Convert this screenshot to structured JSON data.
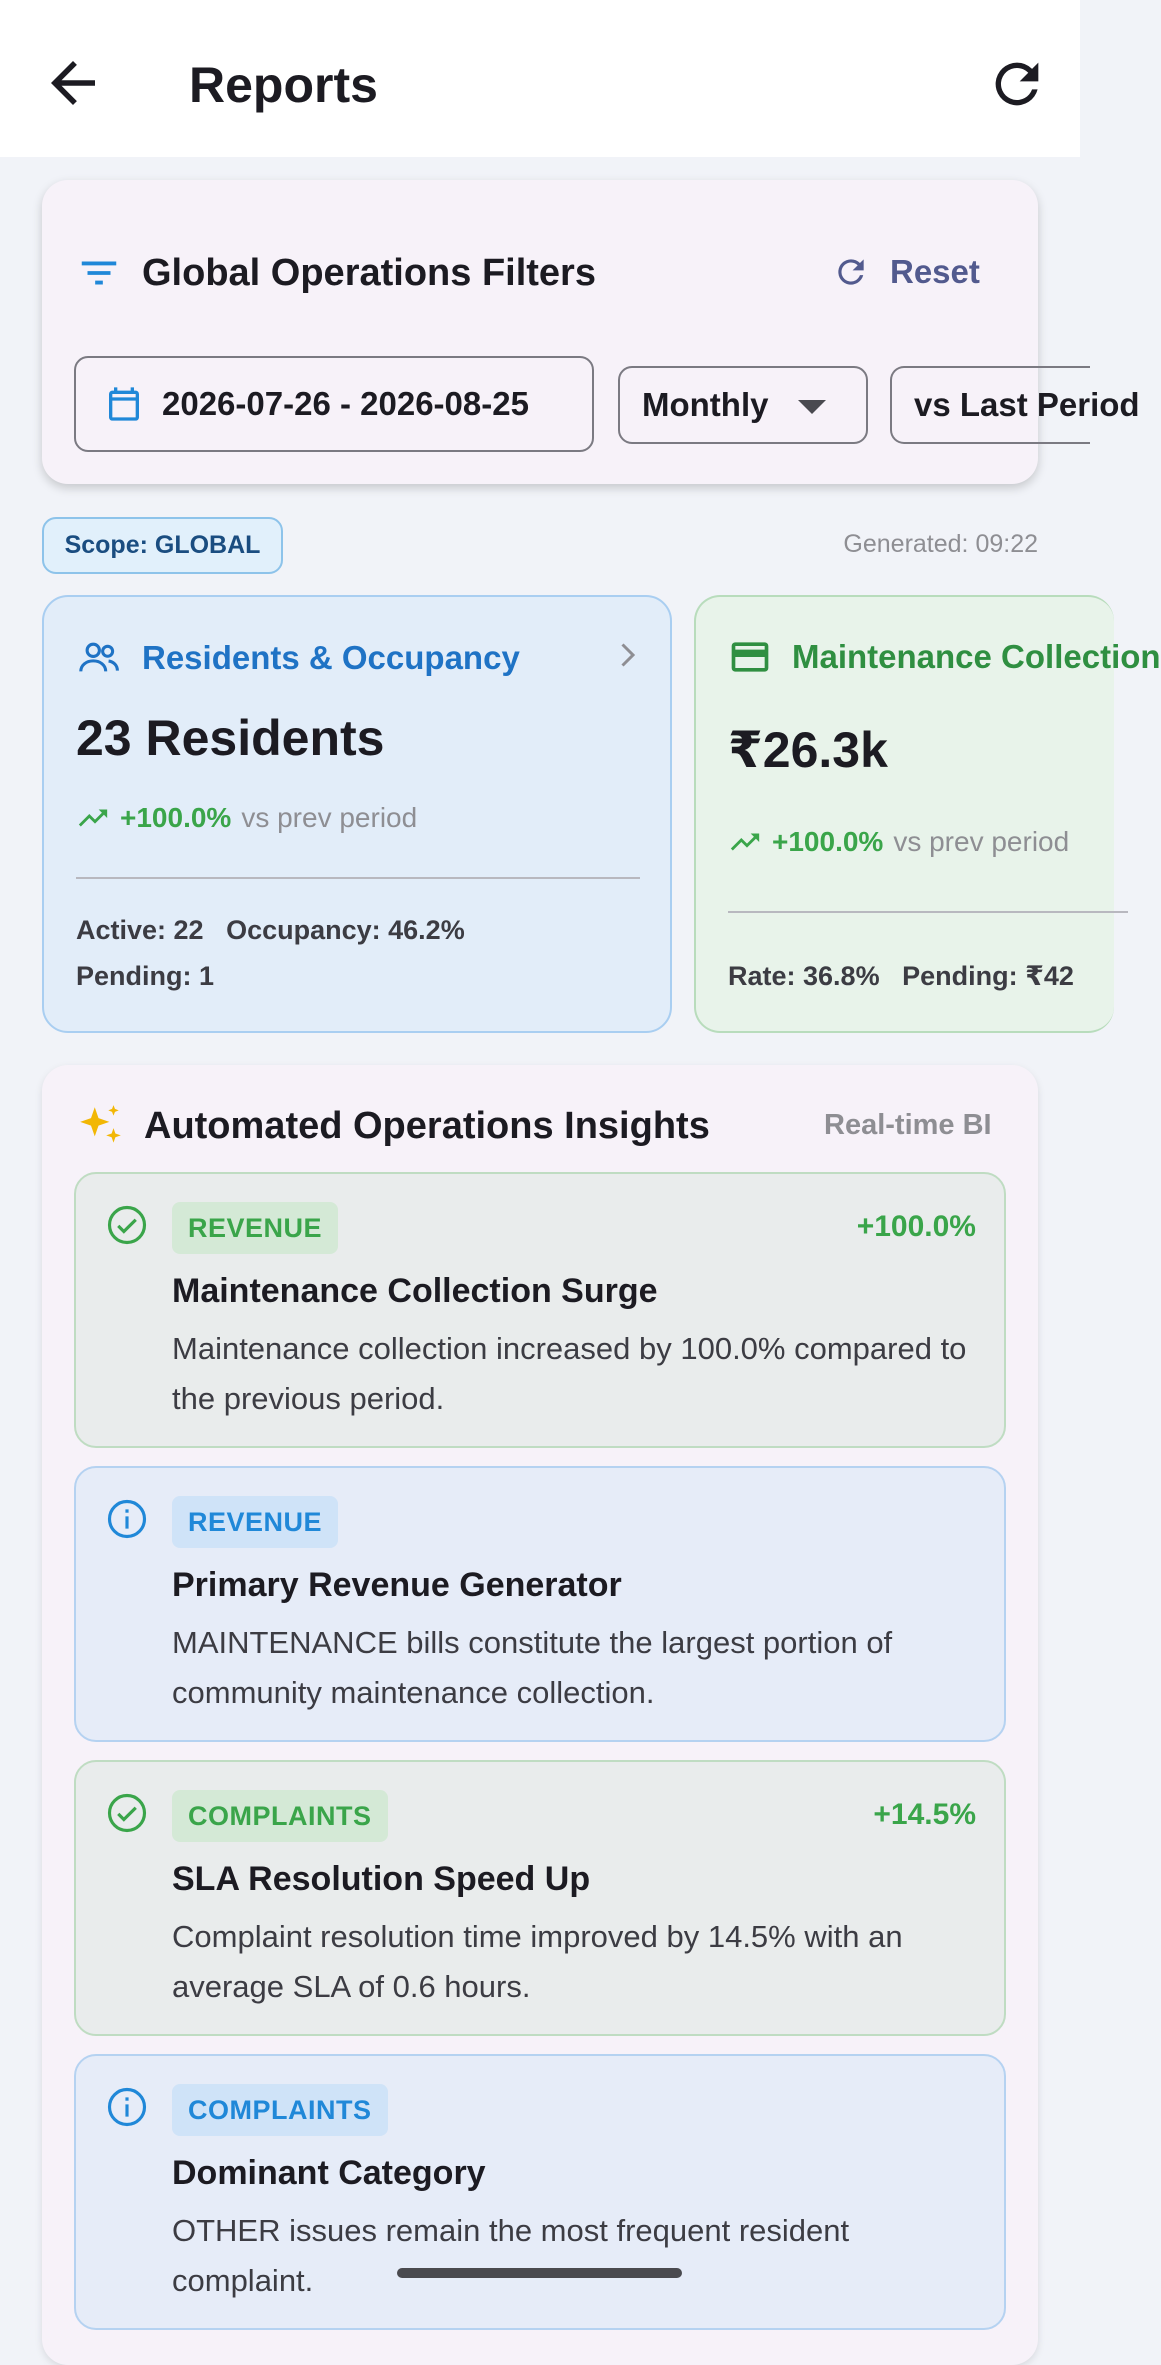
{
  "appbar": {
    "title": "Reports"
  },
  "filters": {
    "title": "Global Operations Filters",
    "reset_label": "Reset",
    "date_range": "2026-07-26 - 2026-08-25",
    "period": "Monthly",
    "compare": "vs Last Period"
  },
  "scope": "Scope: GLOBAL",
  "generated": "Generated: 09:22",
  "metrics": {
    "residents": {
      "title": "Residents & Occupancy",
      "value": "23 Residents",
      "trend_pct": "+100.0%",
      "trend_label": "vs prev period",
      "stat_active": "Active: 22",
      "stat_occupancy": "Occupancy: 46.2%",
      "stat_pending": "Pending: 1"
    },
    "maintenance": {
      "title": "Maintenance Collection",
      "value": "₹26.3k",
      "trend_pct": "+100.0%",
      "trend_label": "vs prev period",
      "stat_rate": "Rate: 36.8%",
      "stat_pending": "Pending: ₹42"
    }
  },
  "insights": {
    "title": "Automated Operations Insights",
    "tag": "Real-time BI",
    "items": [
      {
        "type": "success",
        "category": "REVENUE",
        "change": "+100.0%",
        "title": "Maintenance Collection Surge",
        "desc": "Maintenance collection increased by 100.0% compared to the previous period."
      },
      {
        "type": "info",
        "category": "REVENUE",
        "change": "",
        "title": "Primary Revenue Generator",
        "desc": "MAINTENANCE bills constitute the largest portion of community maintenance collection."
      },
      {
        "type": "success",
        "category": "COMPLAINTS",
        "change": "+14.5%",
        "title": "SLA Resolution Speed Up",
        "desc": "Complaint resolution time improved by 14.5% with an average SLA of 0.6 hours."
      },
      {
        "type": "info",
        "category": "COMPLAINTS",
        "change": "",
        "title": "Dominant Category",
        "desc": "OTHER issues remain the most frequent resident complaint."
      }
    ]
  },
  "colors": {
    "primary": "#525a8e",
    "blue": "#1f73c5",
    "green": "#3aa54a"
  }
}
